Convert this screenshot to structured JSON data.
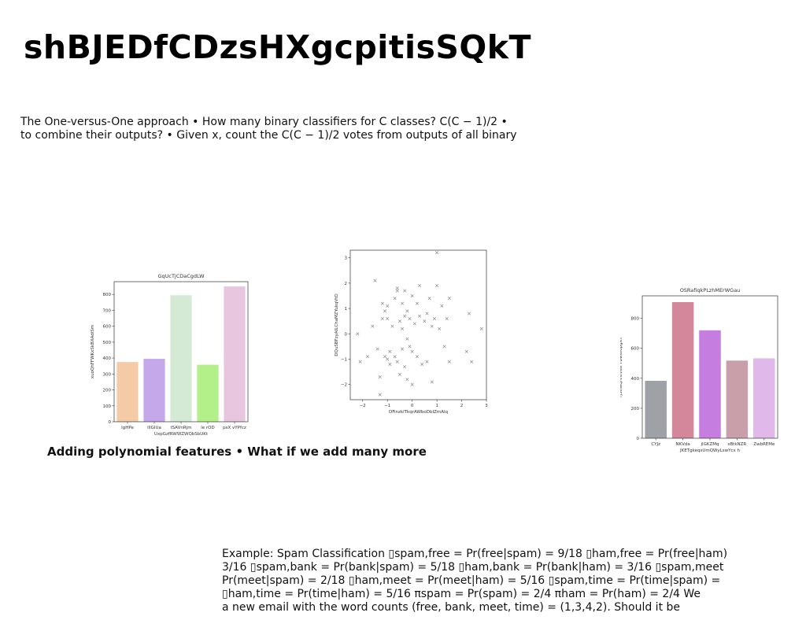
{
  "slide": {
    "title": "shBJEDfCDzsHXgcpitisSQkT",
    "paragraph_lines": [
      "The One-versus-One approach • How many binary classifiers for C classes? C(C − 1)/2 •",
      "to combine their outputs? • Given x, count the C(C − 1)/2 votes from outputs of all binary"
    ],
    "caption": "Adding polynomial features • What if we add many more",
    "example_lines": [
      "Example: Spam Classification ▯spam,free = Pr(free|spam) = 9/18 ▯ham,free = Pr(free|ham)",
      "3/16 ▯spam,bank = Pr(bank|spam) = 5/18 ▯ham,bank = Pr(bank|ham) = 3/16 ▯spam,meet",
      "Pr(meet|spam) = 2/18 ▯ham,meet = Pr(meet|ham) = 5/16 ▯spam,time = Pr(time|spam) =",
      "▯ham,time = Pr(time|ham) = 5/16 πspam = Pr(spam) = 2/4 πham = Pr(ham) = 2/4 We",
      "a new email with the word counts (free, bank, meet, time) = (1,3,4,2). Should it be"
    ]
  },
  "chart_data": [
    {
      "type": "bar",
      "title": "GqUcTjCDaCgdLW",
      "xlabel": "UxpGzfRWWZWQbSbUKt",
      "ylabel": "xuoQhFFWKxSkBXAdiSm",
      "categories": [
        "IgHPe",
        "lllGIUa",
        "tSAVnRjm",
        "le rOD",
        "psX vYPfcz"
      ],
      "values": [
        375,
        395,
        795,
        358,
        850
      ],
      "colors": [
        "#f5cba7",
        "#c5a8ea",
        "#d4ead4",
        "#b3f08a",
        "#e8c6df"
      ],
      "ylim": [
        0,
        880
      ],
      "yticks": [
        0,
        100,
        200,
        300,
        400,
        500,
        600,
        700,
        800
      ],
      "grid": false
    },
    {
      "type": "scatter",
      "title": "",
      "xlabel": "DFinzkITkqrAWboDbIZmAlq",
      "ylabel": "DQuSBFzyAILChaMZYukqVtO",
      "xlim": [
        -2.5,
        3
      ],
      "ylim": [
        -2.6,
        3.3
      ],
      "xticks": [
        -2,
        -1,
        0,
        1,
        2,
        3
      ],
      "yticks": [
        -2,
        -1,
        0,
        1,
        2,
        3
      ],
      "marker": "x",
      "color": "#8a8a8a",
      "grid": false,
      "points": [
        [
          -2.2,
          0.0
        ],
        [
          -2.1,
          -1.1
        ],
        [
          -1.8,
          -0.9
        ],
        [
          -1.6,
          0.3
        ],
        [
          -1.5,
          2.1
        ],
        [
          -1.4,
          -0.6
        ],
        [
          -1.3,
          -1.7
        ],
        [
          -1.3,
          -2.4
        ],
        [
          -1.2,
          1.2
        ],
        [
          -1.2,
          0.6
        ],
        [
          -1.1,
          0.9
        ],
        [
          -1.1,
          -0.9
        ],
        [
          -1.0,
          1.1
        ],
        [
          -1.0,
          0.6
        ],
        [
          -1.0,
          -1.0
        ],
        [
          -0.9,
          -0.7
        ],
        [
          -0.9,
          -1.2
        ],
        [
          -0.8,
          0.3
        ],
        [
          -0.7,
          1.4
        ],
        [
          -0.7,
          -0.9
        ],
        [
          -0.6,
          1.8
        ],
        [
          -0.6,
          1.7
        ],
        [
          -0.6,
          -1.1
        ],
        [
          -0.5,
          0.5
        ],
        [
          -0.5,
          -1.6
        ],
        [
          -0.4,
          1.2
        ],
        [
          -0.4,
          0.2
        ],
        [
          -0.4,
          -0.6
        ],
        [
          -0.3,
          1.7
        ],
        [
          -0.3,
          0.7
        ],
        [
          -0.3,
          -1.3
        ],
        [
          -0.2,
          0.9
        ],
        [
          -0.2,
          -0.2
        ],
        [
          -0.2,
          -1.8
        ],
        [
          -0.1,
          0.6
        ],
        [
          -0.1,
          -0.5
        ],
        [
          0.0,
          1.5
        ],
        [
          0.0,
          -0.7
        ],
        [
          0.0,
          -2.0
        ],
        [
          0.1,
          0.4
        ],
        [
          0.2,
          1.2
        ],
        [
          0.2,
          -0.9
        ],
        [
          0.3,
          1.9
        ],
        [
          0.3,
          0.7
        ],
        [
          0.4,
          -1.2
        ],
        [
          0.5,
          0.5
        ],
        [
          0.6,
          0.8
        ],
        [
          0.6,
          -1.1
        ],
        [
          0.7,
          1.4
        ],
        [
          0.8,
          0.3
        ],
        [
          0.8,
          -1.9
        ],
        [
          0.9,
          0.6
        ],
        [
          1.0,
          3.2
        ],
        [
          1.0,
          1.9
        ],
        [
          1.1,
          0.2
        ],
        [
          1.2,
          1.1
        ],
        [
          1.3,
          -0.5
        ],
        [
          1.4,
          0.6
        ],
        [
          1.5,
          1.4
        ],
        [
          1.5,
          -1.1
        ],
        [
          2.2,
          -0.7
        ],
        [
          2.3,
          0.8
        ],
        [
          2.4,
          -1.1
        ],
        [
          2.8,
          0.2
        ]
      ]
    },
    {
      "type": "bar",
      "title": "OSRafiqkPLzhMErWGau",
      "xlabel": "JKETgkeqsUmQWyLswYcx h",
      "ylabel": "rjSHwqfVsfvWFYBwWdpgXY",
      "categories": [
        "CYJz",
        "NKVda",
        "jlGKZMq",
        "sBtkNZR",
        "ZwbREMe"
      ],
      "values": [
        383,
        908,
        720,
        518,
        533
      ],
      "colors": [
        "#9ea1a6",
        "#d4869a",
        "#c57ee0",
        "#c9a0aa",
        "#e0b8ea"
      ],
      "ylim": [
        0,
        950
      ],
      "yticks": [
        0,
        200,
        400,
        600,
        800
      ],
      "grid": false
    }
  ]
}
